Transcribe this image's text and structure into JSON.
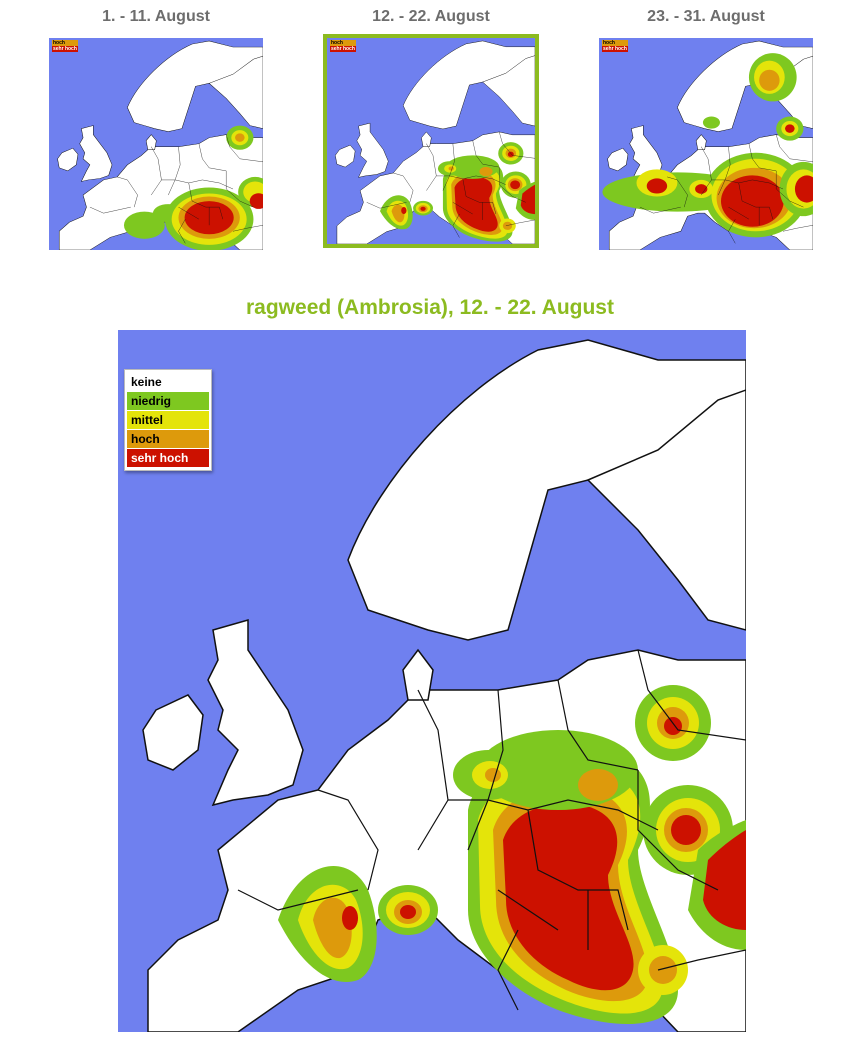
{
  "thumbnails": [
    {
      "label": "1. - 11. August",
      "selected": false
    },
    {
      "label": "12. - 22. August",
      "selected": true
    },
    {
      "label": "23. - 31. August",
      "selected": false
    }
  ],
  "main": {
    "title": "ragweed (Ambrosia), 12. - 22. August"
  },
  "legend": [
    {
      "label": "keine",
      "color": "#ffffff",
      "text_color": "#000000"
    },
    {
      "label": "niedrig",
      "color": "#7ec820",
      "text_color": "#000000"
    },
    {
      "label": "mittel",
      "color": "#e4e40a",
      "text_color": "#000000"
    },
    {
      "label": "hoch",
      "color": "#dd9a0c",
      "text_color": "#000000"
    },
    {
      "label": "sehr hoch",
      "color": "#cc1100",
      "text_color": "#ffffff"
    }
  ],
  "colors": {
    "sea": "#6f80ef",
    "land": "#ffffff",
    "border": "#111111",
    "accent": "#8cbb20",
    "thumb_title": "#6d6d6d"
  }
}
